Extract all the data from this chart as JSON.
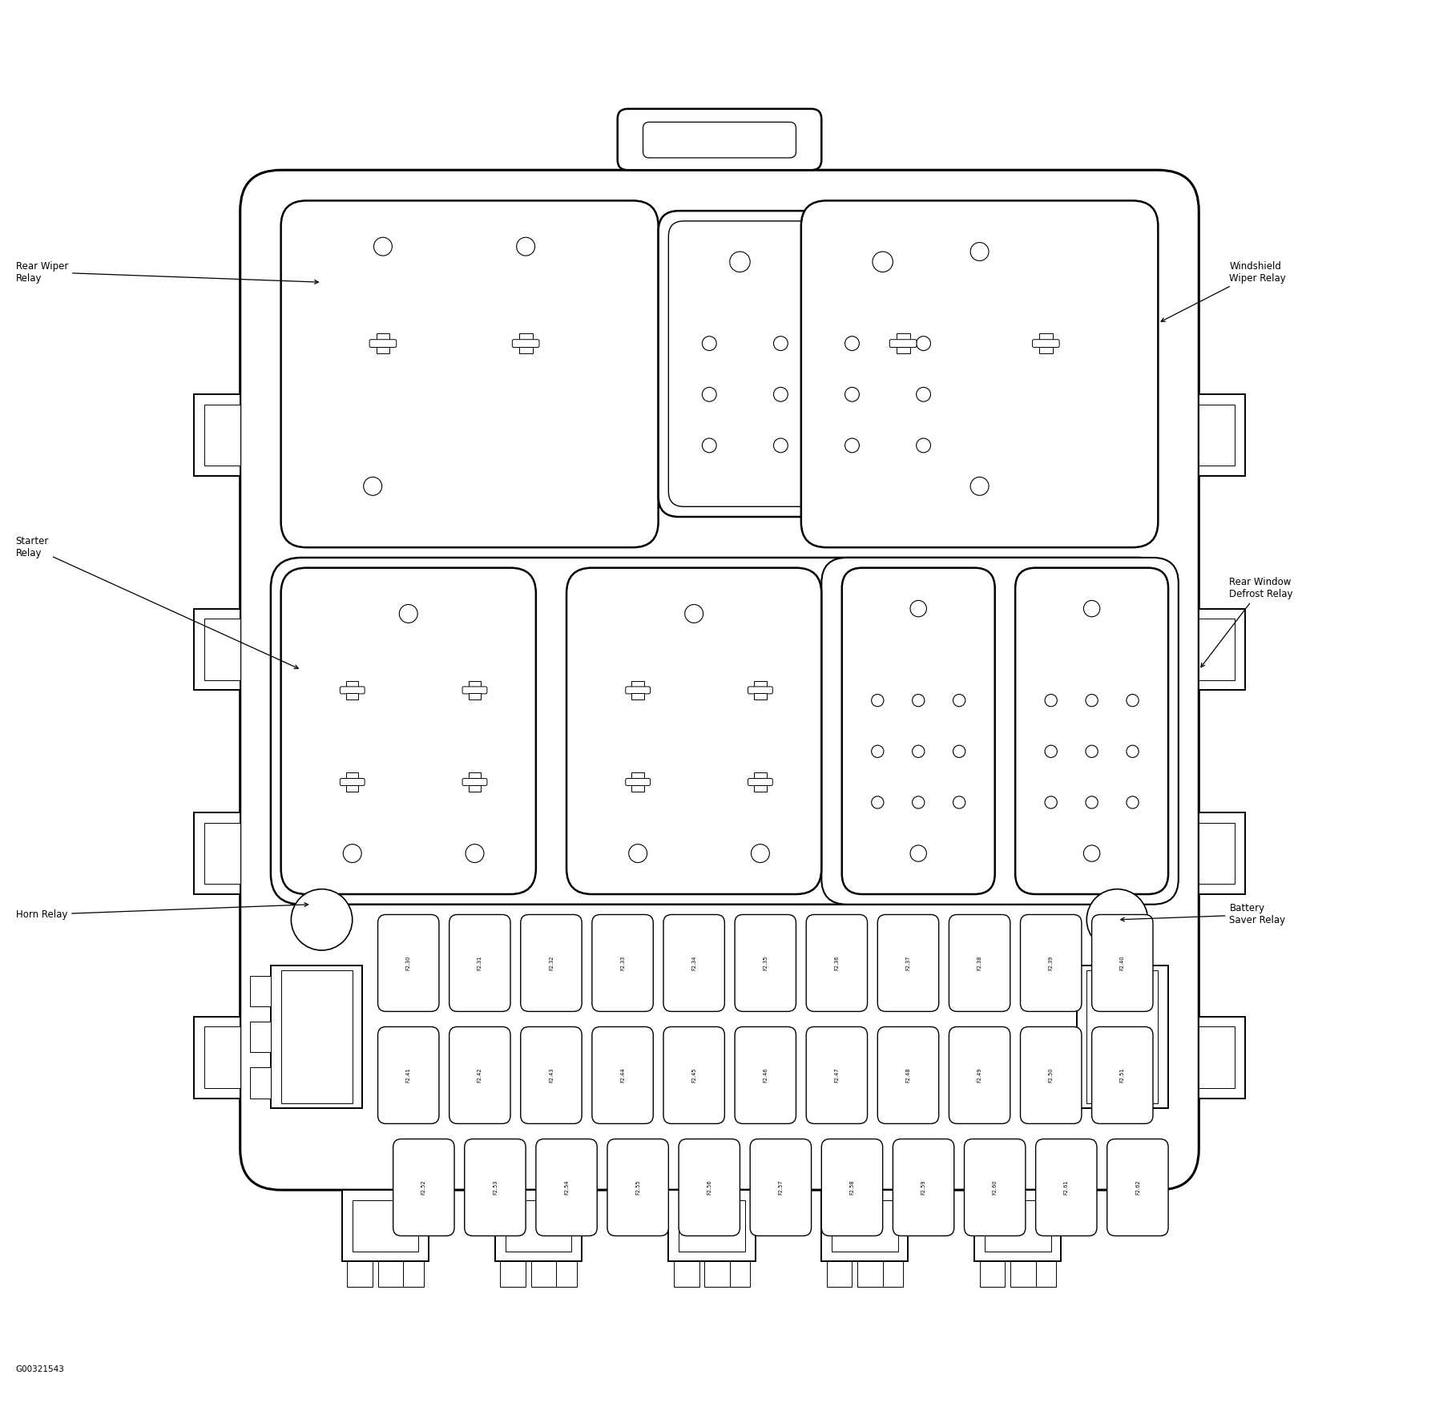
{
  "bg_color": "#ffffff",
  "watermark": "G00321543",
  "labels": {
    "rear_wiper_relay": "Rear Wiper\nRelay",
    "windshield_wiper_relay": "Windshield\nWiper Relay",
    "starter_relay": "Starter\nRelay",
    "rear_window_defrost": "Rear Window\nDefrost Relay",
    "horn_relay": "Horn Relay",
    "battery_saver_relay": "Battery\nSaver Relay"
  },
  "row1_fuses": [
    "F2.30",
    "F2.31",
    "F2.32",
    "F2.33",
    "F2.34",
    "F2.35",
    "F2.36",
    "F2.37",
    "F2.38",
    "F2.39",
    "F2.40"
  ],
  "row2_fuses": [
    "F2.41",
    "F2.42",
    "F2.43",
    "F2.44",
    "F2.45",
    "F2.46",
    "F2.47",
    "F2.48",
    "F2.49",
    "F2.50",
    "F2.51"
  ],
  "row3_fuses": [
    "F2.52",
    "F2.53",
    "F2.54",
    "F2.55",
    "F2.56",
    "F2.57",
    "F2.58",
    "F2.59",
    "F2.60",
    "F2.61",
    "F2.62"
  ]
}
